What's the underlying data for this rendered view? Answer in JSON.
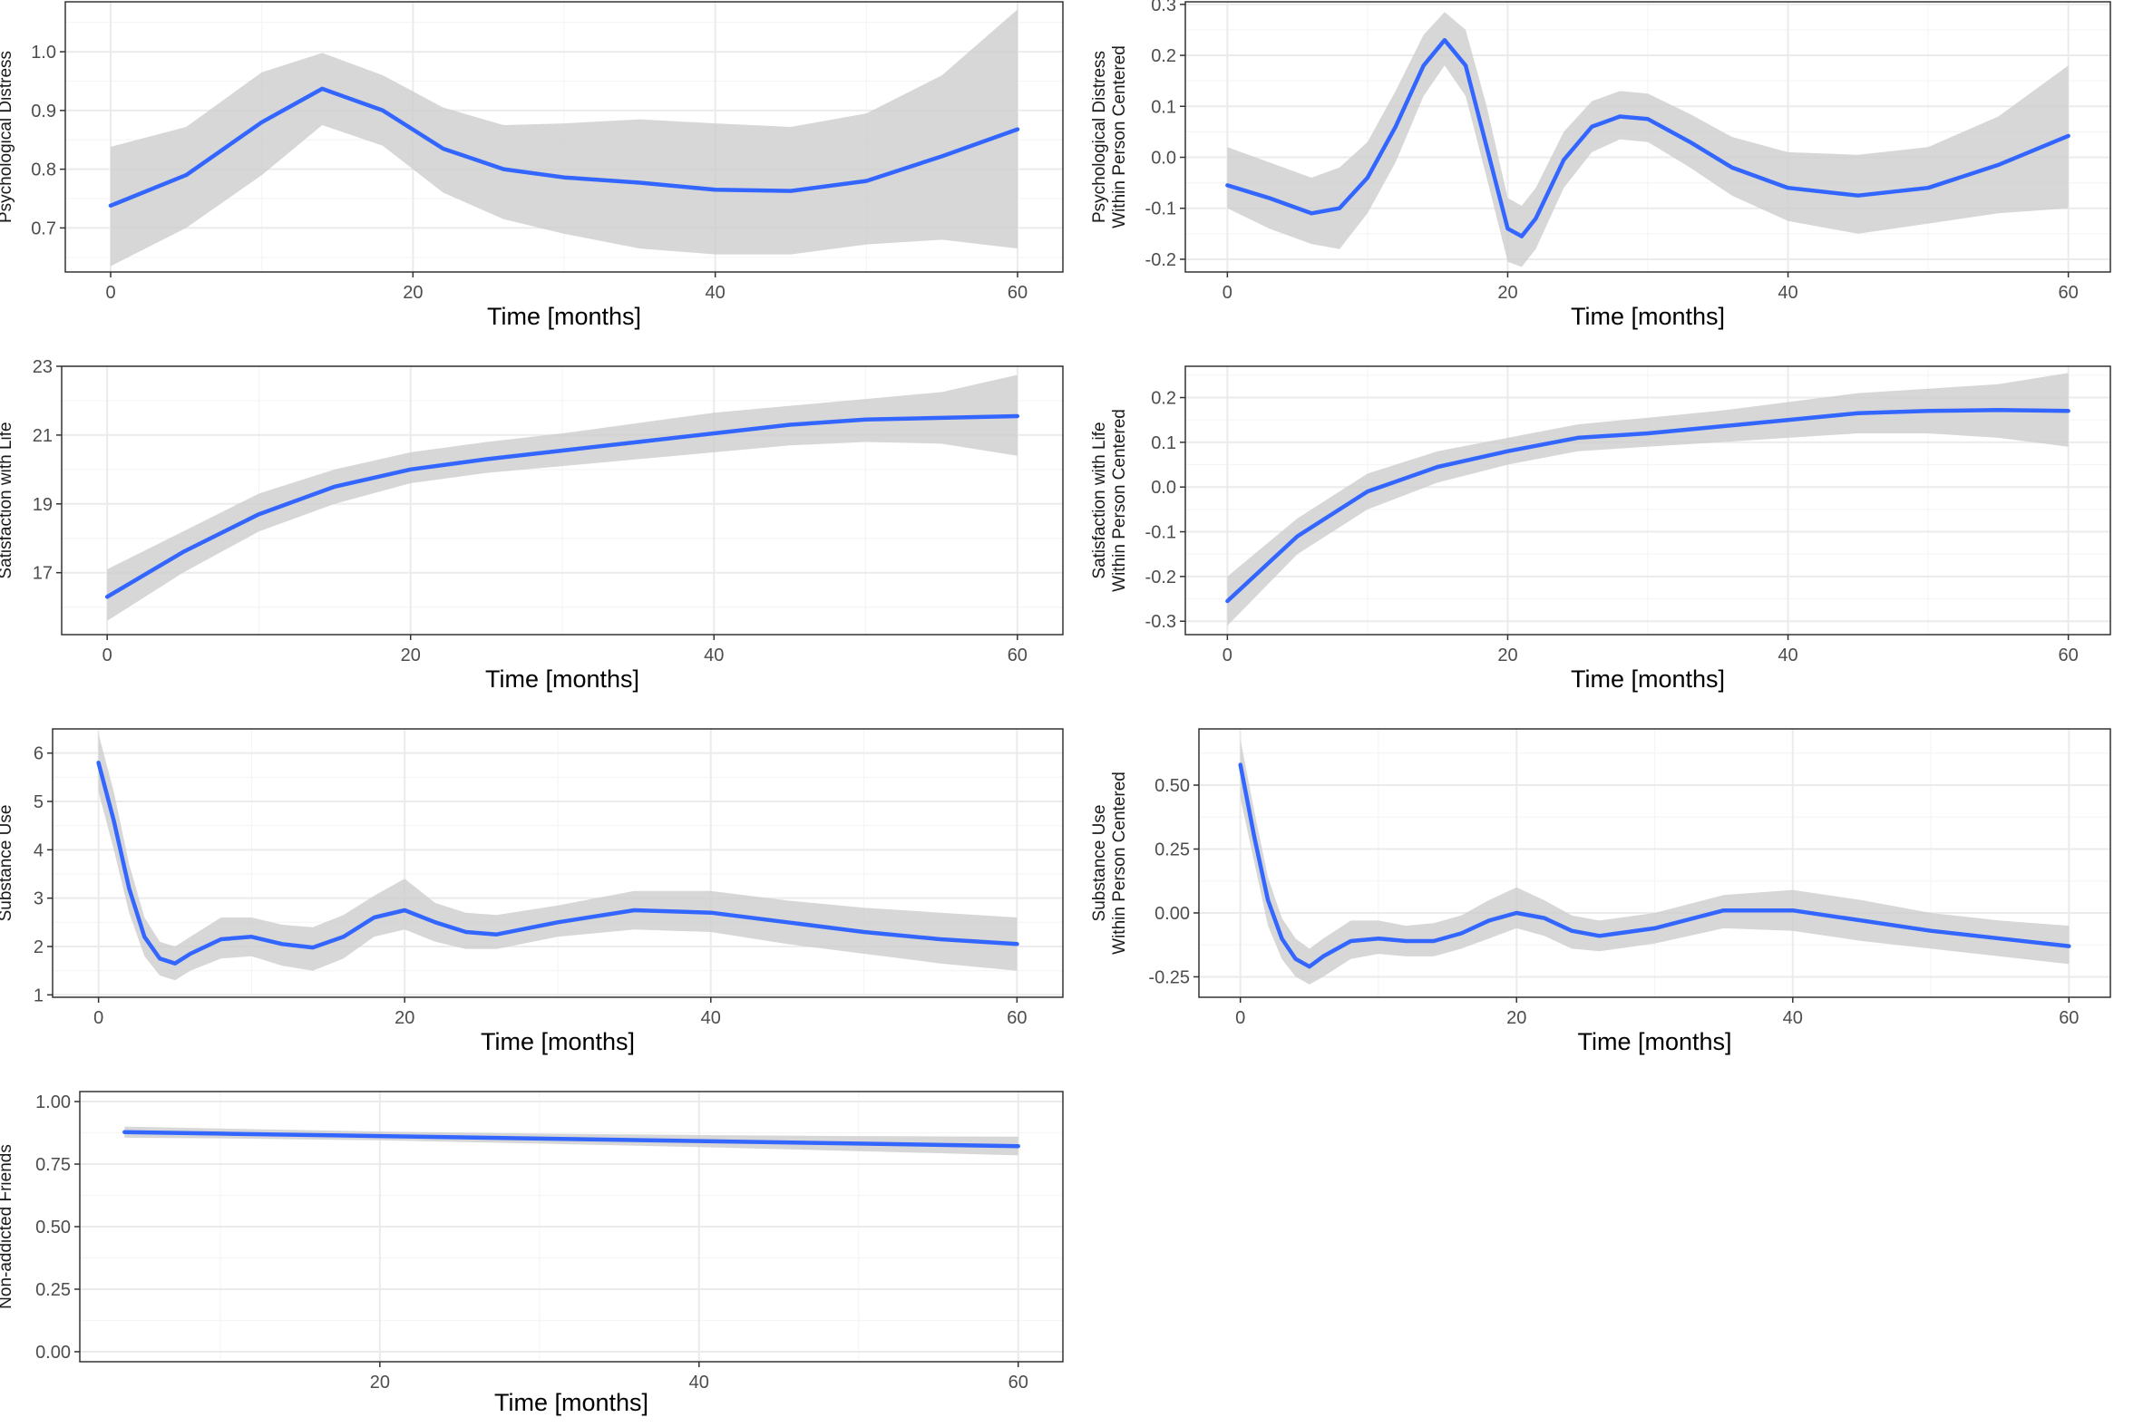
{
  "figure": {
    "title": ""
  },
  "colors": {
    "line": "#3366FF",
    "ribbon": "#CCCCCC",
    "grid_major": "#EBEBEB",
    "grid_minor": "#F5F5F5",
    "panel_border": "#333333",
    "tick_text": "#4D4D4D"
  },
  "chart_data": [
    {
      "id": "pd",
      "type": "line",
      "title": "",
      "xlabel": "Time [months]",
      "ylabel": [
        "Psychological Distress"
      ],
      "xlim": [
        -3,
        63
      ],
      "ylim": [
        0.625,
        1.085
      ],
      "xticks": [
        0,
        20,
        40,
        60
      ],
      "yticks": [
        0.7,
        0.8,
        0.9,
        1.0
      ],
      "ytick_labels": [
        "0.7",
        "0.8",
        "0.9",
        "1.0"
      ],
      "grid": true,
      "x": [
        0,
        5,
        10,
        14,
        18,
        22,
        26,
        30,
        35,
        40,
        45,
        50,
        55,
        60
      ],
      "values": [
        0.738,
        0.79,
        0.88,
        0.937,
        0.9,
        0.835,
        0.8,
        0.786,
        0.777,
        0.765,
        0.763,
        0.78,
        0.822,
        0.868
      ],
      "lower": [
        0.635,
        0.7,
        0.79,
        0.875,
        0.84,
        0.76,
        0.715,
        0.69,
        0.665,
        0.655,
        0.655,
        0.672,
        0.68,
        0.665
      ],
      "upper": [
        0.838,
        0.872,
        0.965,
        0.998,
        0.96,
        0.905,
        0.875,
        0.878,
        0.885,
        0.878,
        0.872,
        0.895,
        0.96,
        1.072
      ]
    },
    {
      "id": "pd-wpc",
      "type": "line",
      "title": "",
      "xlabel": "Time [months]",
      "ylabel": [
        "Psychological Distress",
        "Within Person Centered"
      ],
      "xlim": [
        -3,
        63
      ],
      "ylim": [
        -0.225,
        0.305
      ],
      "xticks": [
        0,
        20,
        40,
        60
      ],
      "yticks": [
        -0.2,
        -0.1,
        0.0,
        0.1,
        0.2,
        0.3
      ],
      "ytick_labels": [
        "-0.2",
        "-0.1",
        "0.0",
        "0.1",
        "0.2",
        "0.3"
      ],
      "grid": true,
      "x": [
        0,
        3,
        6,
        8,
        10,
        12,
        14,
        15.5,
        17,
        18.5,
        20,
        21,
        22,
        24,
        26,
        28,
        30,
        33,
        36,
        40,
        45,
        50,
        55,
        60
      ],
      "values": [
        -0.055,
        -0.08,
        -0.11,
        -0.1,
        -0.04,
        0.06,
        0.18,
        0.23,
        0.18,
        0.02,
        -0.14,
        -0.155,
        -0.12,
        -0.005,
        0.06,
        0.08,
        0.075,
        0.03,
        -0.02,
        -0.06,
        -0.075,
        -0.06,
        -0.015,
        0.042
      ],
      "lower": [
        -0.1,
        -0.14,
        -0.17,
        -0.18,
        -0.11,
        -0.01,
        0.12,
        0.18,
        0.12,
        -0.04,
        -0.205,
        -0.215,
        -0.18,
        -0.06,
        0.01,
        0.035,
        0.03,
        -0.02,
        -0.075,
        -0.125,
        -0.15,
        -0.13,
        -0.11,
        -0.1
      ],
      "upper": [
        0.02,
        -0.01,
        -0.04,
        -0.02,
        0.03,
        0.13,
        0.24,
        0.285,
        0.25,
        0.1,
        -0.08,
        -0.095,
        -0.06,
        0.05,
        0.11,
        0.13,
        0.125,
        0.085,
        0.04,
        0.01,
        0.005,
        0.02,
        0.08,
        0.18
      ]
    },
    {
      "id": "swl",
      "type": "line",
      "title": "",
      "xlabel": "Time [months]",
      "ylabel": [
        "Satisfaction with Life"
      ],
      "xlim": [
        -3,
        63
      ],
      "ylim": [
        15.2,
        23.0
      ],
      "xticks": [
        0,
        20,
        40,
        60
      ],
      "yticks": [
        17,
        19,
        21,
        23
      ],
      "ytick_labels": [
        "17",
        "19",
        "21",
        "23"
      ],
      "grid": true,
      "x": [
        0,
        5,
        10,
        15,
        20,
        25,
        30,
        35,
        40,
        45,
        50,
        55,
        60
      ],
      "values": [
        16.3,
        17.6,
        18.7,
        19.5,
        20.0,
        20.3,
        20.55,
        20.8,
        21.05,
        21.3,
        21.45,
        21.5,
        21.55
      ],
      "lower": [
        15.6,
        17.0,
        18.2,
        19.0,
        19.6,
        19.9,
        20.1,
        20.3,
        20.5,
        20.7,
        20.8,
        20.75,
        20.4
      ],
      "upper": [
        17.1,
        18.2,
        19.3,
        20.0,
        20.5,
        20.8,
        21.05,
        21.35,
        21.65,
        21.85,
        22.05,
        22.25,
        22.75
      ]
    },
    {
      "id": "swl-wpc",
      "type": "line",
      "title": "",
      "xlabel": "Time [months]",
      "ylabel": [
        "Satisfaction with Life",
        "Within Person Centered"
      ],
      "xlim": [
        -3,
        63
      ],
      "ylim": [
        -0.33,
        0.27
      ],
      "xticks": [
        0,
        20,
        40,
        60
      ],
      "yticks": [
        -0.3,
        -0.2,
        -0.1,
        0.0,
        0.1,
        0.2
      ],
      "ytick_labels": [
        "-0.3",
        "-0.2",
        "-0.1",
        "0.0",
        "0.1",
        "0.2"
      ],
      "grid": true,
      "x": [
        0,
        5,
        10,
        15,
        20,
        25,
        30,
        35,
        40,
        45,
        50,
        55,
        60
      ],
      "values": [
        -0.255,
        -0.11,
        -0.01,
        0.045,
        0.08,
        0.11,
        0.12,
        0.135,
        0.15,
        0.165,
        0.17,
        0.172,
        0.17
      ],
      "lower": [
        -0.31,
        -0.15,
        -0.05,
        0.01,
        0.05,
        0.08,
        0.09,
        0.1,
        0.11,
        0.12,
        0.12,
        0.11,
        0.09
      ],
      "upper": [
        -0.2,
        -0.07,
        0.03,
        0.08,
        0.11,
        0.14,
        0.155,
        0.17,
        0.19,
        0.21,
        0.22,
        0.23,
        0.255
      ]
    },
    {
      "id": "su",
      "type": "line",
      "title": "",
      "xlabel": "Time [months]",
      "ylabel": [
        "Substance Use"
      ],
      "xlim": [
        -3,
        63
      ],
      "ylim": [
        0.95,
        6.5
      ],
      "xticks": [
        0,
        20,
        40,
        60
      ],
      "yticks": [
        1,
        2,
        3,
        4,
        5,
        6
      ],
      "ytick_labels": [
        "1",
        "2",
        "3",
        "4",
        "5",
        "6"
      ],
      "grid": true,
      "x": [
        0,
        1,
        2,
        3,
        4,
        5,
        6,
        8,
        10,
        12,
        14,
        16,
        18,
        20,
        22,
        24,
        26,
        30,
        35,
        40,
        45,
        50,
        55,
        60
      ],
      "values": [
        5.8,
        4.6,
        3.2,
        2.2,
        1.75,
        1.65,
        1.85,
        2.15,
        2.2,
        2.05,
        1.98,
        2.2,
        2.6,
        2.75,
        2.5,
        2.3,
        2.25,
        2.5,
        2.75,
        2.7,
        2.5,
        2.3,
        2.15,
        2.05
      ],
      "lower": [
        5.2,
        4.0,
        2.7,
        1.8,
        1.4,
        1.3,
        1.5,
        1.75,
        1.8,
        1.6,
        1.5,
        1.75,
        2.2,
        2.35,
        2.1,
        1.95,
        1.95,
        2.2,
        2.35,
        2.3,
        2.05,
        1.85,
        1.65,
        1.5
      ],
      "upper": [
        6.4,
        5.2,
        3.7,
        2.6,
        2.1,
        2.0,
        2.2,
        2.6,
        2.6,
        2.45,
        2.4,
        2.65,
        3.05,
        3.4,
        2.9,
        2.7,
        2.65,
        2.85,
        3.15,
        3.15,
        2.95,
        2.8,
        2.7,
        2.6
      ]
    },
    {
      "id": "su-wpc",
      "type": "line",
      "title": "",
      "xlabel": "Time [months]",
      "ylabel": [
        "Substance Use",
        "Within Person Centered"
      ],
      "xlim": [
        -3,
        63
      ],
      "ylim": [
        -0.33,
        0.72
      ],
      "xticks": [
        0,
        20,
        40,
        60
      ],
      "yticks": [
        -0.25,
        0.0,
        0.25,
        0.5
      ],
      "ytick_labels": [
        "-0.25",
        "0.00",
        "0.25",
        "0.50"
      ],
      "grid": true,
      "x": [
        0,
        1,
        2,
        3,
        4,
        5,
        6,
        8,
        10,
        12,
        14,
        16,
        18,
        20,
        22,
        24,
        26,
        30,
        35,
        40,
        45,
        50,
        55,
        60
      ],
      "values": [
        0.58,
        0.3,
        0.05,
        -0.1,
        -0.18,
        -0.21,
        -0.17,
        -0.11,
        -0.1,
        -0.11,
        -0.11,
        -0.08,
        -0.03,
        0.0,
        -0.02,
        -0.07,
        -0.09,
        -0.06,
        0.01,
        0.01,
        -0.03,
        -0.07,
        -0.1,
        -0.13
      ],
      "lower": [
        0.45,
        0.2,
        -0.05,
        -0.18,
        -0.25,
        -0.28,
        -0.25,
        -0.18,
        -0.16,
        -0.17,
        -0.17,
        -0.14,
        -0.1,
        -0.06,
        -0.09,
        -0.14,
        -0.15,
        -0.12,
        -0.06,
        -0.07,
        -0.11,
        -0.14,
        -0.17,
        -0.2
      ],
      "upper": [
        0.68,
        0.4,
        0.14,
        -0.02,
        -0.1,
        -0.14,
        -0.1,
        -0.03,
        -0.03,
        -0.05,
        -0.04,
        -0.01,
        0.05,
        0.1,
        0.05,
        -0.01,
        -0.03,
        0.0,
        0.07,
        0.09,
        0.05,
        0.0,
        -0.03,
        -0.05
      ]
    },
    {
      "id": "naf",
      "type": "line",
      "title": "",
      "xlabel": "Time [months]",
      "ylabel": [
        "Non-addicted Friends"
      ],
      "xlim": [
        1.2,
        62.8
      ],
      "ylim": [
        -0.04,
        1.04
      ],
      "xticks": [
        20,
        40,
        60
      ],
      "yticks": [
        0.0,
        0.25,
        0.5,
        0.75,
        1.0
      ],
      "ytick_labels": [
        "0.00",
        "0.25",
        "0.50",
        "0.75",
        "1.00"
      ],
      "grid": true,
      "x": [
        4,
        10,
        20,
        30,
        40,
        50,
        60
      ],
      "values": [
        0.878,
        0.872,
        0.862,
        0.852,
        0.842,
        0.832,
        0.822
      ],
      "lower": [
        0.855,
        0.853,
        0.845,
        0.832,
        0.818,
        0.802,
        0.785
      ],
      "upper": [
        0.9,
        0.892,
        0.88,
        0.872,
        0.866,
        0.862,
        0.86
      ]
    }
  ]
}
